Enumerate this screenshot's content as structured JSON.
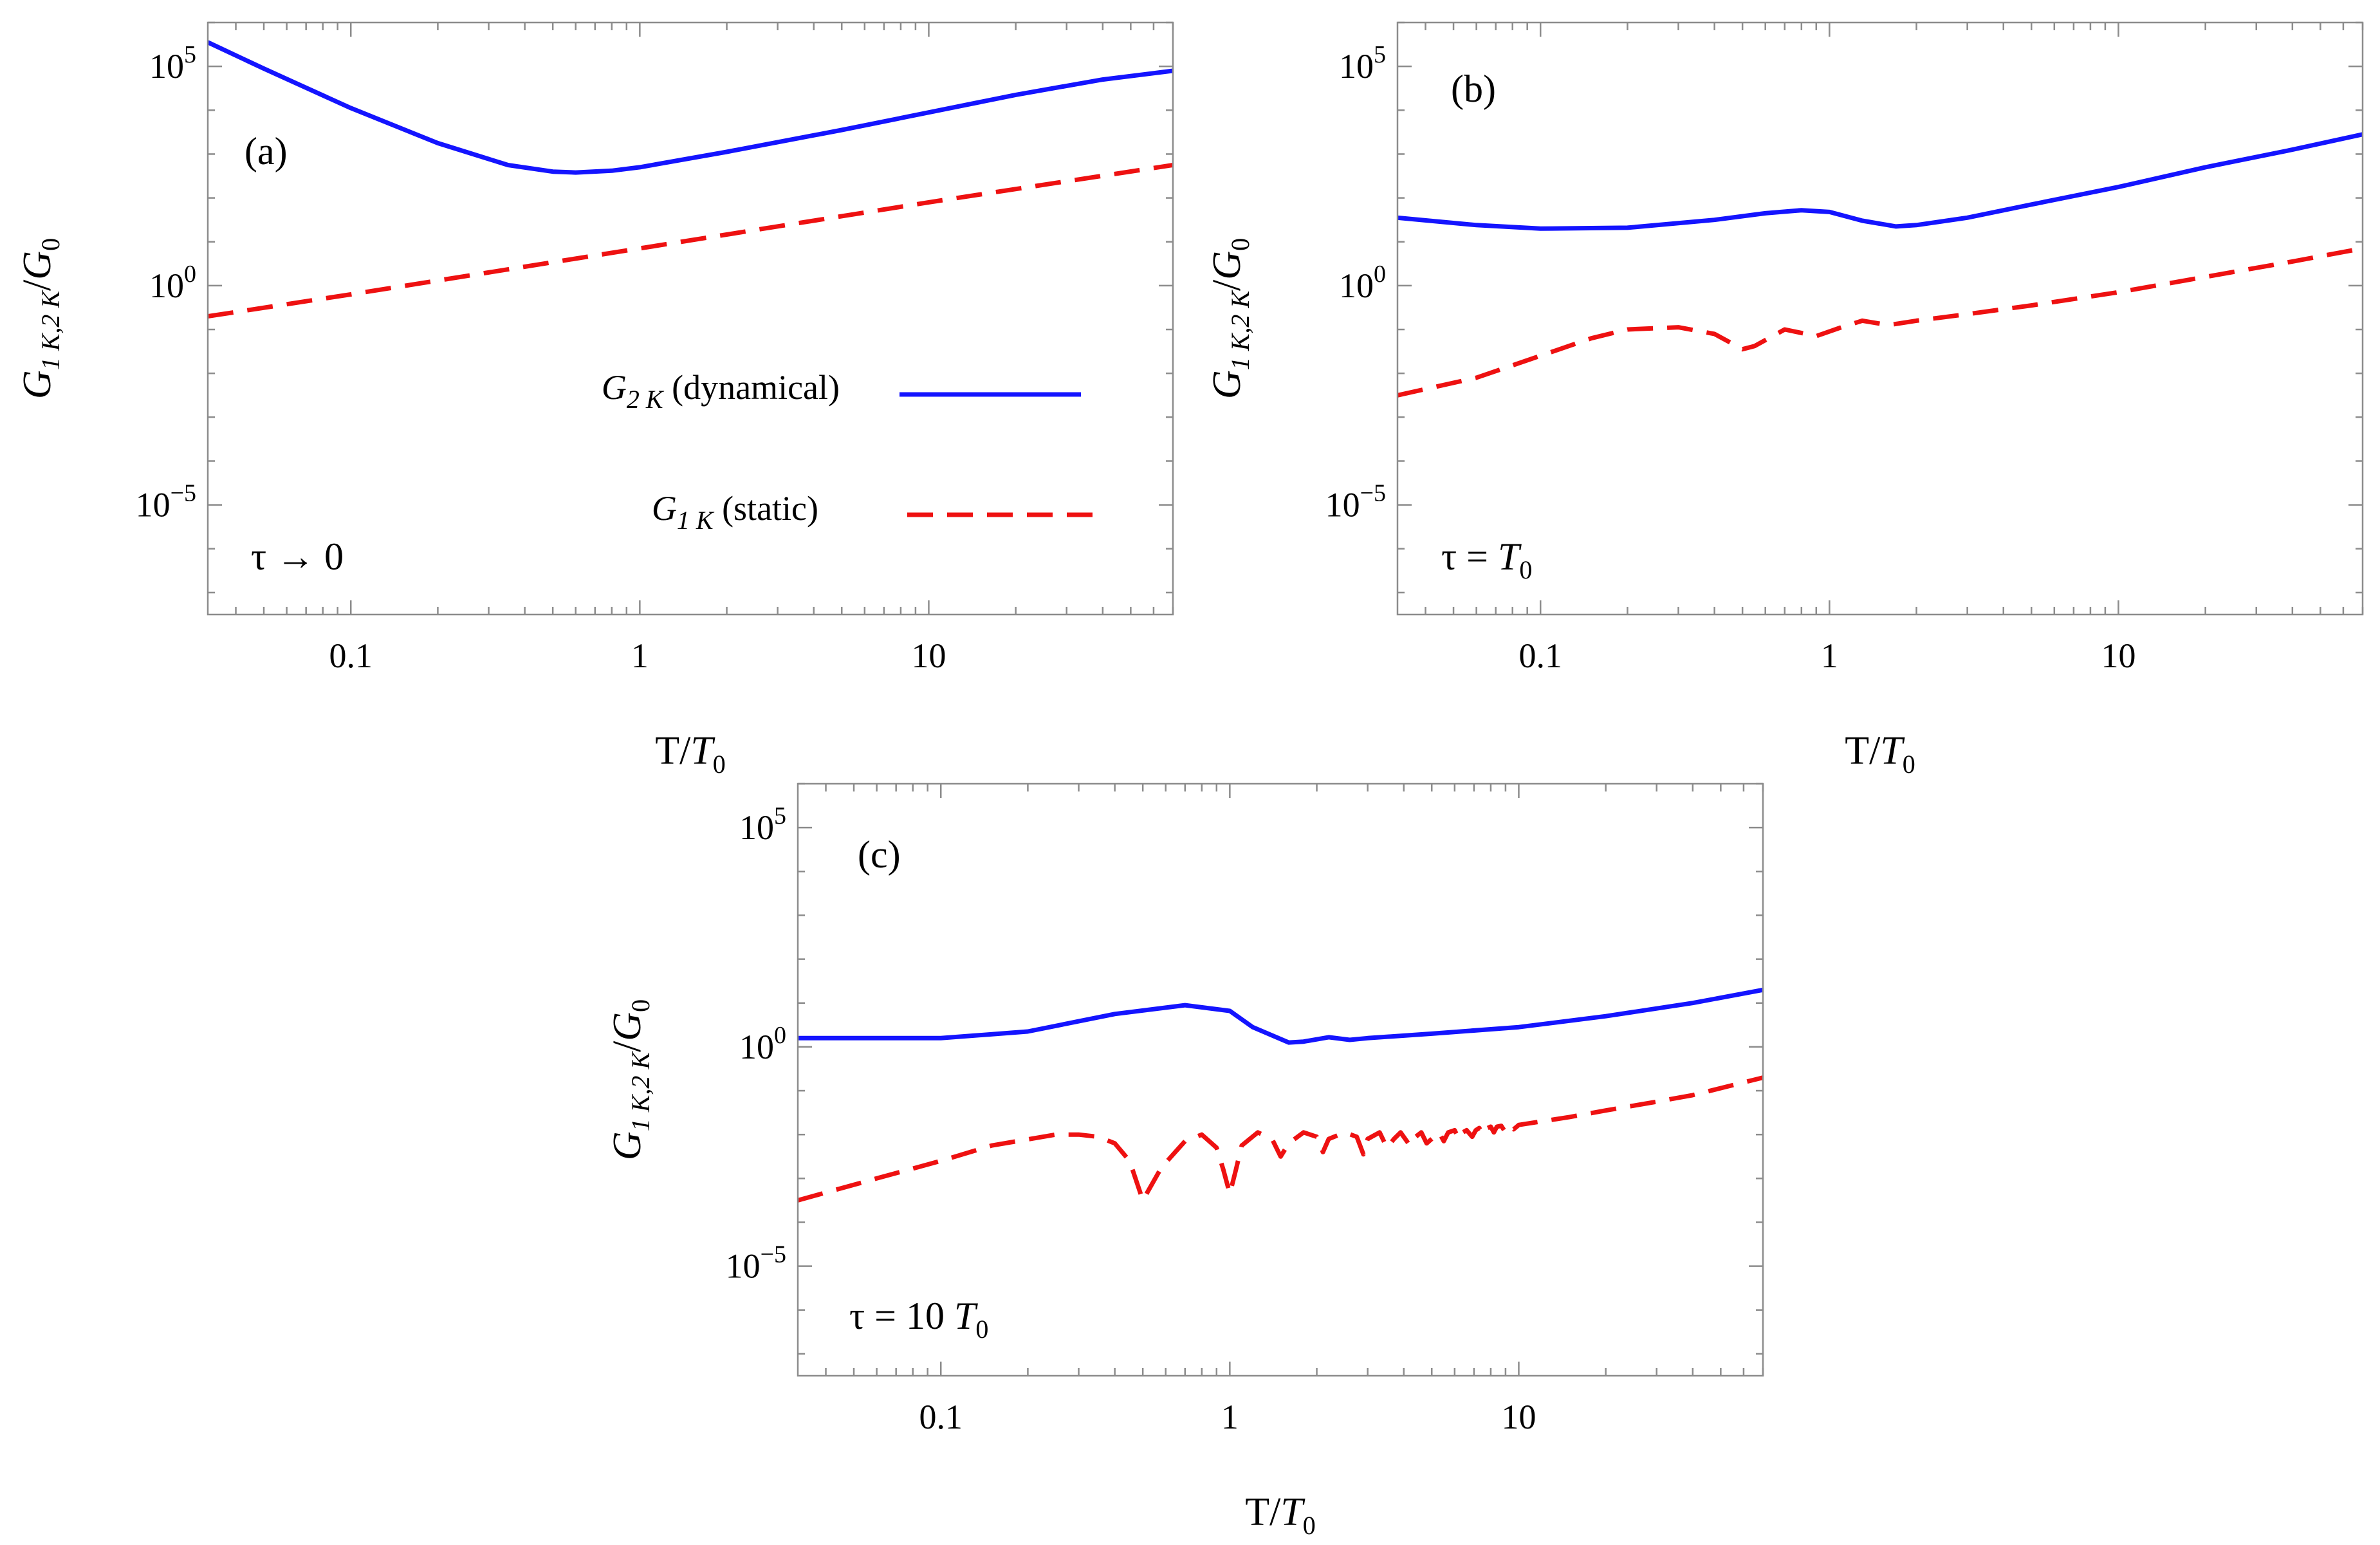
{
  "colors": {
    "dynamical": "#1414ff",
    "static": "#ee1111",
    "frame": "#8c8c8c"
  },
  "axes": {
    "x_ticks": [
      {
        "value": 0.1,
        "label": "0.1"
      },
      {
        "value": 1,
        "label": "1"
      },
      {
        "value": 10,
        "label": "10"
      }
    ],
    "y_ticks": [
      {
        "exp": 5,
        "base": "10",
        "sup": "5"
      },
      {
        "exp": 0,
        "base": "10",
        "sup": "0"
      },
      {
        "exp": -5,
        "base": "10",
        "sup": "−5"
      }
    ],
    "xlabel": {
      "main": "T/",
      "it": "T",
      "sub": "0"
    },
    "ylabel": {
      "it": "G",
      "sub": "1 K,2 K",
      "mid": "/",
      "it2": "G",
      "sub2": "0"
    }
  },
  "legend": {
    "dyn": {
      "it": "G",
      "sub": "2 K",
      "text": " (dynamical)"
    },
    "stat": {
      "it": "G",
      "sub": "1 K",
      "text": " (static)"
    }
  },
  "chart_data": [
    {
      "type": "line",
      "panel": "(a)",
      "condition": {
        "text": "τ → 0"
      },
      "xscale": "log",
      "yscale": "log",
      "xlim": [
        0.032,
        70
      ],
      "ylim_exp": [
        -7.5,
        6
      ],
      "series": [
        {
          "name": "G2K (dynamical)",
          "style": "solid",
          "x": [
            0.032,
            0.05,
            0.1,
            0.2,
            0.35,
            0.5,
            0.6,
            0.8,
            1,
            2,
            5,
            10,
            20,
            40,
            70
          ],
          "log10_y": [
            5.55,
            4.95,
            4.05,
            3.25,
            2.75,
            2.6,
            2.58,
            2.62,
            2.7,
            3.05,
            3.55,
            3.95,
            4.35,
            4.7,
            4.9
          ]
        },
        {
          "name": "G1K (static)",
          "style": "dashed",
          "x": [
            0.032,
            0.1,
            1,
            10,
            70
          ],
          "log10_y": [
            -0.7,
            -0.2,
            0.85,
            1.9,
            2.75
          ]
        }
      ]
    },
    {
      "type": "line",
      "panel": "(b)",
      "condition": {
        "text": "τ = ",
        "it": "T",
        "sub": "0"
      },
      "xscale": "log",
      "yscale": "log",
      "xlim": [
        0.032,
        70
      ],
      "ylim_exp": [
        -7.5,
        6
      ],
      "series": [
        {
          "name": "G2K (dynamical)",
          "style": "solid",
          "x": [
            0.032,
            0.06,
            0.1,
            0.2,
            0.4,
            0.6,
            0.8,
            1,
            1.3,
            1.7,
            2,
            3,
            5,
            10,
            20,
            40,
            70
          ],
          "log10_y": [
            1.55,
            1.38,
            1.3,
            1.32,
            1.5,
            1.65,
            1.72,
            1.68,
            1.48,
            1.35,
            1.38,
            1.55,
            1.85,
            2.25,
            2.7,
            3.1,
            3.45
          ]
        },
        {
          "name": "G1K (static)",
          "style": "dashed",
          "x": [
            0.032,
            0.06,
            0.1,
            0.15,
            0.2,
            0.3,
            0.4,
            0.5,
            0.55,
            0.7,
            0.9,
            1.1,
            1.3,
            1.6,
            2,
            3,
            5,
            10,
            20,
            40,
            70
          ],
          "log10_y": [
            -2.5,
            -2.1,
            -1.6,
            -1.2,
            -1.0,
            -0.95,
            -1.1,
            -1.45,
            -1.38,
            -1.0,
            -1.15,
            -0.95,
            -0.8,
            -0.9,
            -0.8,
            -0.65,
            -0.45,
            -0.15,
            0.2,
            0.55,
            0.85
          ]
        }
      ]
    },
    {
      "type": "line",
      "panel": "(c)",
      "condition": {
        "text": "τ = 10 ",
        "it": "T",
        "sub": "0"
      },
      "xscale": "log",
      "yscale": "log",
      "xlim": [
        0.032,
        70
      ],
      "ylim_exp": [
        -7.5,
        6
      ],
      "series": [
        {
          "name": "G2K (dynamical)",
          "style": "solid",
          "x": [
            0.032,
            0.1,
            0.2,
            0.4,
            0.7,
            1.0,
            1.2,
            1.6,
            1.8,
            2.2,
            2.6,
            3,
            5,
            10,
            20,
            40,
            70
          ],
          "log10_y": [
            0.2,
            0.2,
            0.35,
            0.75,
            0.95,
            0.82,
            0.45,
            0.1,
            0.12,
            0.22,
            0.16,
            0.2,
            0.3,
            0.45,
            0.7,
            1.0,
            1.3
          ]
        },
        {
          "name": "G1K (static)",
          "style": "dashed",
          "x": [
            0.032,
            0.06,
            0.1,
            0.15,
            0.25,
            0.3,
            0.35,
            0.4,
            0.45,
            0.5,
            0.58,
            0.7,
            0.8,
            0.9,
            0.95,
            1.0,
            1.05,
            1.1,
            1.25,
            1.4,
            1.5,
            1.6,
            1.8,
            2.0,
            2.1,
            2.2,
            2.5,
            2.75,
            2.9,
            3.0,
            3.3,
            3.5,
            3.7,
            3.9,
            4.2,
            4.4,
            4.6,
            4.8,
            5.1,
            5.3,
            5.5,
            5.7,
            6.0,
            6.2,
            6.4,
            6.6,
            6.9,
            7.1,
            7.3,
            7.5,
            7.8,
            8.0,
            8.2,
            8.4,
            8.7,
            8.9,
            9.1,
            9.3,
            9.6,
            10,
            15,
            20,
            30,
            40,
            70
          ],
          "log10_y": [
            -3.5,
            -3.0,
            -2.6,
            -2.25,
            -2.0,
            -2.0,
            -2.05,
            -2.2,
            -2.6,
            -3.5,
            -2.75,
            -2.15,
            -2.0,
            -2.3,
            -2.8,
            -3.35,
            -2.8,
            -2.25,
            -1.95,
            -2.1,
            -2.5,
            -2.2,
            -1.95,
            -2.05,
            -2.4,
            -2.1,
            -1.95,
            -2.05,
            -2.45,
            -2.1,
            -1.95,
            -2.3,
            -2.1,
            -1.95,
            -2.25,
            -2.05,
            -1.95,
            -2.2,
            -2.05,
            -1.95,
            -2.15,
            -1.95,
            -1.9,
            -2.1,
            -1.95,
            -1.9,
            -2.05,
            -1.9,
            -1.85,
            -2.0,
            -1.85,
            -1.82,
            -1.95,
            -1.82,
            -1.8,
            -1.9,
            -1.8,
            -1.78,
            -1.88,
            -1.78,
            -1.6,
            -1.45,
            -1.25,
            -1.1,
            -0.7
          ]
        }
      ]
    }
  ]
}
